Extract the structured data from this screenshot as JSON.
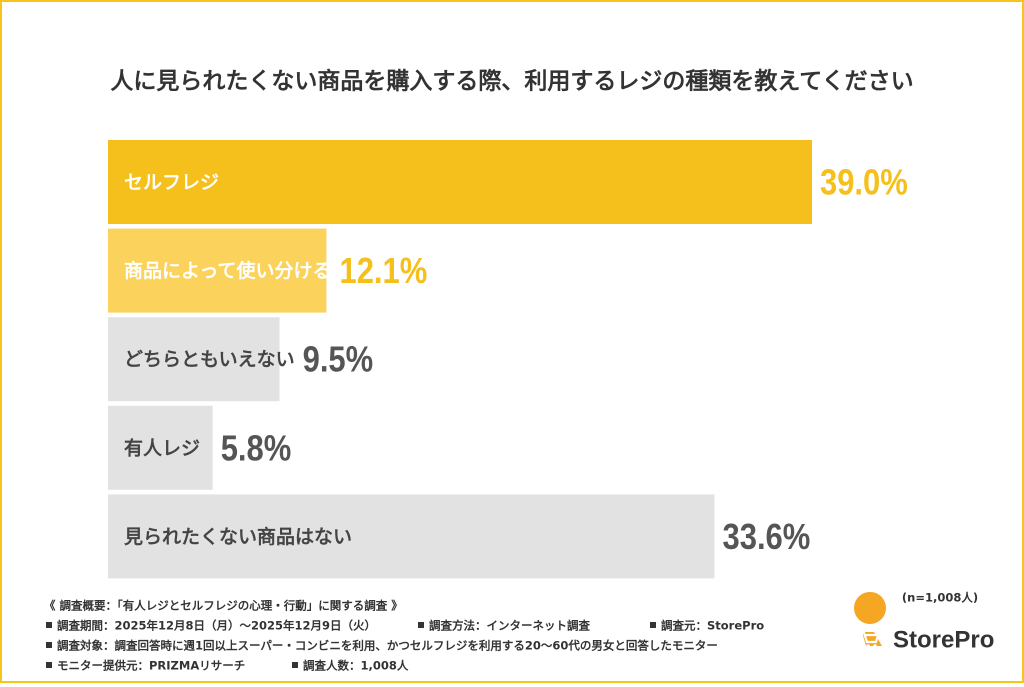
{
  "chart_data": {
    "type": "bar",
    "orientation": "horizontal",
    "title": "人に見られたくない商品を購入する際、利用するレジの種類を教えてください",
    "categories": [
      "セルフレジ",
      "商品によって使い分ける",
      "どちらともいえない",
      "有人レジ",
      "見られたくない商品はない"
    ],
    "values": [
      39.0,
      12.1,
      9.5,
      5.8,
      33.6
    ],
    "value_labels": [
      "39.0%",
      "12.1%",
      "9.5%",
      "5.8%",
      "33.6%"
    ],
    "colors": [
      "#f5bf1c",
      "#fbd35c",
      "#e2e2e2",
      "#e2e2e2",
      "#e2e2e2"
    ],
    "category_label_colors": [
      "#ffffff",
      "#ffffff",
      "#444444",
      "#444444",
      "#444444"
    ],
    "value_label_colors": [
      "#f5bf1c",
      "#f5bf1c",
      "#555555",
      "#555555",
      "#555555"
    ],
    "sample_size": "(n=1,008人)",
    "survey_heading": "《 調査概要：「有人レジとセルフレジの心理・行動」に関する調査 》",
    "survey_notes": [
      "調査期間：2025年12月8日（月）～2025年12月9日（火）",
      "調査方法：インターネット調査",
      "調査元：StorePro",
      "調査対象：調査回答時に週1回以上スーパー・コンビニを利用、かつセルフレジを利用する20～60代の男女と回答したモニター",
      "モニター提供元：PRIZMAリサーチ",
      "調査人数：1,008人"
    ],
    "logo": "StorePro"
  }
}
